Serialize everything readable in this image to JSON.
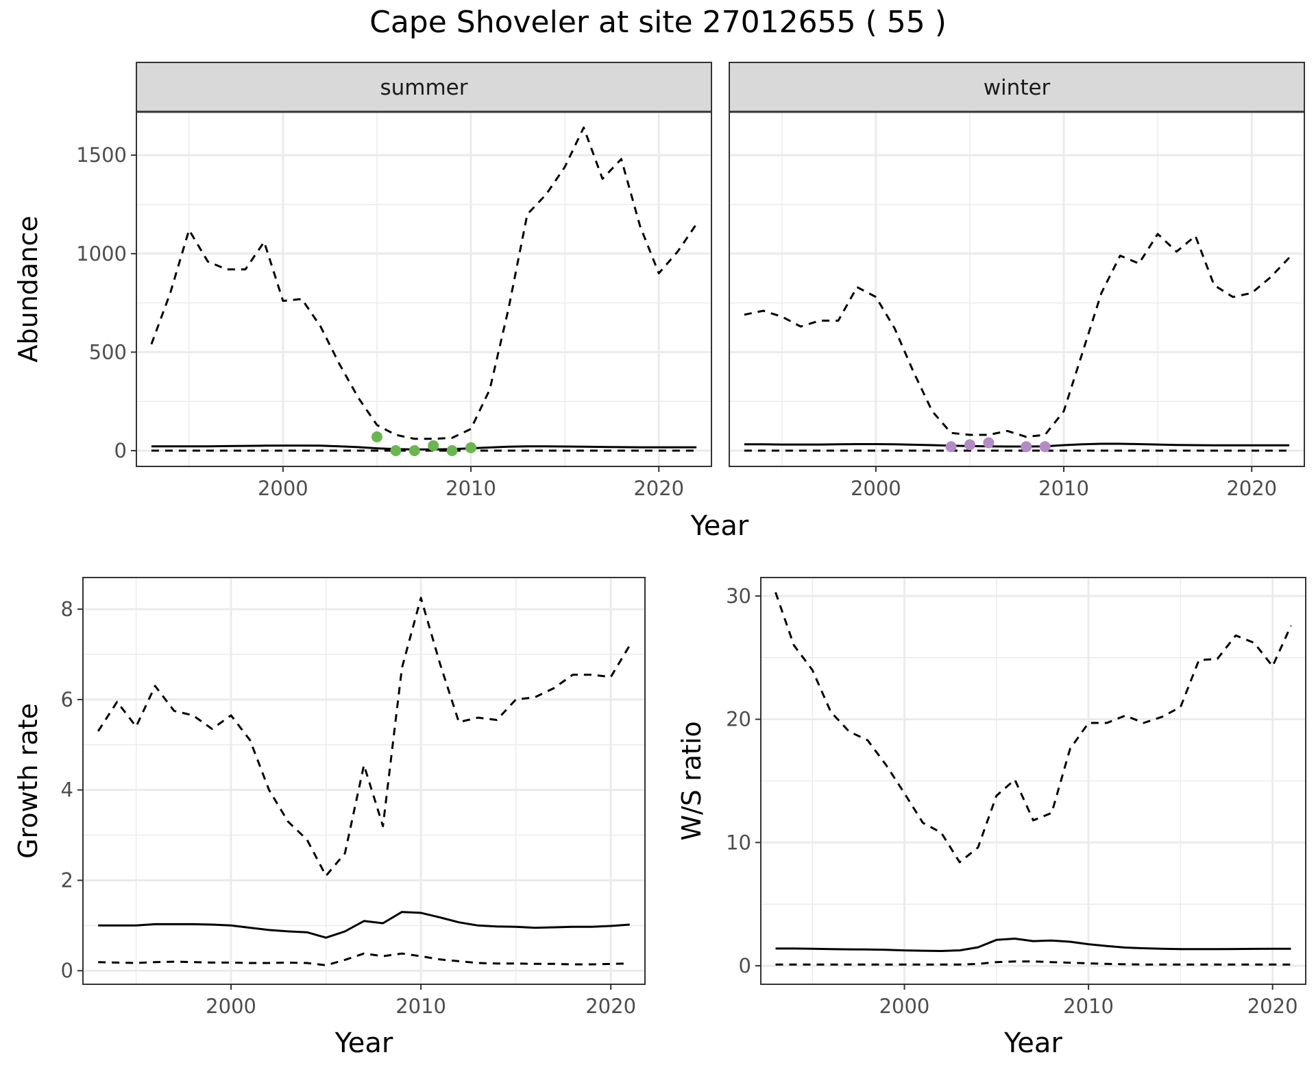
{
  "figure": {
    "title": "Cape Shoveler at site 27012655 ( 55 )"
  },
  "colors": {
    "summer_points": "#6ab651",
    "winter_points": "#b48ac7",
    "line": "#000000",
    "strip_bg": "#d9d9d9",
    "grid": "#ebebeb"
  },
  "chart_data": [
    {
      "type": "line",
      "title": "",
      "facets": [
        "summer",
        "winter"
      ],
      "xlabel": "Year",
      "ylabel": "Abundance",
      "xlim": [
        1992.2,
        2022.8
      ],
      "ylim": [
        -80,
        1720
      ],
      "xticks": [
        2000,
        2010,
        2020
      ],
      "yticks": [
        0,
        500,
        1000,
        1500
      ],
      "grid": true,
      "panels": [
        {
          "facet": "summer",
          "series": [
            {
              "style": "solid",
              "x": [
                1993,
                1994,
                1995,
                1996,
                1997,
                1998,
                1999,
                2000,
                2001,
                2002,
                2003,
                2004,
                2005,
                2006,
                2007,
                2008,
                2009,
                2010,
                2011,
                2012,
                2013,
                2014,
                2015,
                2016,
                2017,
                2018,
                2019,
                2020,
                2021,
                2022
              ],
              "y": [
                22,
                22,
                22,
                22,
                23,
                24,
                25,
                26,
                26,
                25,
                22,
                18,
                12,
                8,
                6,
                6,
                8,
                12,
                16,
                20,
                22,
                22,
                21,
                20,
                19,
                18,
                17,
                17,
                17,
                17
              ]
            },
            {
              "style": "dashed",
              "x": [
                1993,
                1994,
                1995,
                1996,
                1997,
                1998,
                1999,
                2000,
                2001,
                2002,
                2003,
                2004,
                2005,
                2006,
                2007,
                2008,
                2009,
                2010,
                2011,
                2012,
                2013,
                2014,
                2015,
                2016,
                2017,
                2018,
                2019,
                2020,
                2021,
                2022
              ],
              "y": [
                540,
                800,
                1120,
                960,
                920,
                920,
                1060,
                760,
                770,
                630,
                440,
                270,
                130,
                80,
                60,
                60,
                65,
                110,
                310,
                720,
                1200,
                1300,
                1440,
                1640,
                1380,
                1480,
                1140,
                900,
                1010,
                1150
              ]
            },
            {
              "style": "dashed",
              "x": [
                1993,
                2022
              ],
              "y": [
                0,
                0
              ]
            },
            {
              "style": "points",
              "x": [
                2005,
                2006,
                2007,
                2008,
                2009,
                2010
              ],
              "y": [
                70,
                0,
                0,
                25,
                0,
                15
              ]
            }
          ]
        },
        {
          "facet": "winter",
          "series": [
            {
              "style": "solid",
              "x": [
                1993,
                1994,
                1995,
                1996,
                1997,
                1998,
                1999,
                2000,
                2001,
                2002,
                2003,
                2004,
                2005,
                2006,
                2007,
                2008,
                2009,
                2010,
                2011,
                2012,
                2013,
                2014,
                2015,
                2016,
                2017,
                2018,
                2019,
                2020,
                2021,
                2022
              ],
              "y": [
                32,
                32,
                31,
                31,
                31,
                32,
                33,
                33,
                32,
                30,
                28,
                25,
                23,
                22,
                21,
                21,
                22,
                28,
                32,
                35,
                35,
                33,
                31,
                29,
                28,
                27,
                27,
                27,
                27,
                27
              ]
            },
            {
              "style": "dashed",
              "x": [
                1993,
                1994,
                1995,
                1996,
                1997,
                1998,
                1999,
                2000,
                2001,
                2002,
                2003,
                2004,
                2005,
                2006,
                2007,
                2008,
                2009,
                2010,
                2011,
                2012,
                2013,
                2014,
                2015,
                2016,
                2017,
                2018,
                2019,
                2020,
                2021,
                2022
              ],
              "y": [
                690,
                710,
                680,
                630,
                660,
                660,
                830,
                780,
                620,
                400,
                200,
                90,
                80,
                80,
                100,
                70,
                80,
                200,
                500,
                800,
                990,
                950,
                1100,
                1010,
                1090,
                840,
                780,
                800,
                880,
                980
              ]
            },
            {
              "style": "dashed",
              "x": [
                1993,
                2022
              ],
              "y": [
                0,
                0
              ]
            },
            {
              "style": "points",
              "x": [
                2004,
                2005,
                2006,
                2008,
                2009
              ],
              "y": [
                20,
                30,
                40,
                20,
                20
              ]
            }
          ]
        }
      ]
    },
    {
      "type": "line",
      "title": "",
      "xlabel": "Year",
      "ylabel": "Growth rate",
      "xlim": [
        1992.2,
        2021.8
      ],
      "ylim": [
        -0.3,
        8.7
      ],
      "xticks": [
        2000,
        2010,
        2020
      ],
      "yticks": [
        0,
        2,
        4,
        6,
        8
      ],
      "grid": true,
      "series": [
        {
          "style": "solid",
          "x": [
            1993,
            1994,
            1995,
            1996,
            1997,
            1998,
            1999,
            2000,
            2001,
            2002,
            2003,
            2004,
            2005,
            2006,
            2007,
            2008,
            2009,
            2010,
            2011,
            2012,
            2013,
            2014,
            2015,
            2016,
            2017,
            2018,
            2019,
            2020,
            2021
          ],
          "y": [
            1.0,
            1.0,
            1.0,
            1.03,
            1.03,
            1.03,
            1.02,
            1.0,
            0.95,
            0.9,
            0.87,
            0.85,
            0.73,
            0.87,
            1.1,
            1.05,
            1.3,
            1.28,
            1.18,
            1.07,
            1.0,
            0.98,
            0.97,
            0.95,
            0.96,
            0.97,
            0.97,
            0.99,
            1.02
          ]
        },
        {
          "style": "dashed",
          "x": [
            1993,
            1994,
            1995,
            1996,
            1997,
            1998,
            1999,
            2000,
            2001,
            2002,
            2003,
            2004,
            2005,
            2006,
            2007,
            2008,
            2009,
            2010,
            2011,
            2012,
            2013,
            2014,
            2015,
            2016,
            2017,
            2018,
            2019,
            2020,
            2021
          ],
          "y": [
            5.3,
            5.95,
            5.4,
            6.3,
            5.75,
            5.65,
            5.35,
            5.65,
            5.1,
            4.0,
            3.3,
            2.9,
            2.1,
            2.6,
            4.55,
            3.2,
            6.7,
            8.25,
            6.8,
            5.5,
            5.6,
            5.55,
            6.0,
            6.05,
            6.25,
            6.55,
            6.55,
            6.5,
            7.2
          ]
        },
        {
          "style": "dashed",
          "x": [
            1993,
            1994,
            1995,
            1996,
            1997,
            1998,
            1999,
            2000,
            2001,
            2002,
            2003,
            2004,
            2005,
            2006,
            2007,
            2008,
            2009,
            2010,
            2011,
            2012,
            2013,
            2014,
            2015,
            2016,
            2017,
            2018,
            2019,
            2020,
            2021
          ],
          "y": [
            0.19,
            0.18,
            0.17,
            0.19,
            0.2,
            0.19,
            0.18,
            0.18,
            0.17,
            0.17,
            0.18,
            0.17,
            0.12,
            0.24,
            0.38,
            0.32,
            0.38,
            0.32,
            0.25,
            0.21,
            0.17,
            0.16,
            0.16,
            0.15,
            0.15,
            0.14,
            0.14,
            0.15,
            0.16
          ]
        }
      ]
    },
    {
      "type": "line",
      "title": "",
      "xlabel": "Year",
      "ylabel": "W/S ratio",
      "xlim": [
        1992.2,
        2021.8
      ],
      "ylim": [
        -1.5,
        31.5
      ],
      "xticks": [
        2000,
        2010,
        2020
      ],
      "yticks": [
        0,
        10,
        20,
        30
      ],
      "grid": true,
      "series": [
        {
          "style": "solid",
          "x": [
            1993,
            1994,
            1995,
            1996,
            1997,
            1998,
            1999,
            2000,
            2001,
            2002,
            2003,
            2004,
            2005,
            2006,
            2007,
            2008,
            2009,
            2010,
            2011,
            2012,
            2013,
            2014,
            2015,
            2016,
            2017,
            2018,
            2019,
            2020,
            2021
          ],
          "y": [
            1.4,
            1.4,
            1.38,
            1.35,
            1.33,
            1.32,
            1.3,
            1.25,
            1.22,
            1.2,
            1.25,
            1.5,
            2.1,
            2.2,
            2.0,
            2.05,
            1.95,
            1.75,
            1.6,
            1.48,
            1.42,
            1.38,
            1.35,
            1.35,
            1.35,
            1.36,
            1.37,
            1.38,
            1.38
          ]
        },
        {
          "style": "dashed",
          "x": [
            1993,
            1994,
            1995,
            1996,
            1997,
            1998,
            1999,
            2000,
            2001,
            2002,
            2003,
            2004,
            2005,
            2006,
            2007,
            2008,
            2009,
            2010,
            2011,
            2012,
            2013,
            2014,
            2015,
            2016,
            2017,
            2018,
            2019,
            2020,
            2021
          ],
          "y": [
            30.3,
            26.0,
            24.0,
            20.6,
            19.0,
            18.3,
            16.3,
            14.0,
            11.6,
            10.8,
            8.4,
            9.6,
            13.8,
            15.1,
            11.8,
            12.4,
            17.6,
            19.7,
            19.7,
            20.3,
            19.7,
            20.2,
            21.0,
            24.8,
            24.9,
            26.8,
            26.2,
            24.3,
            27.6
          ]
        },
        {
          "style": "dashed",
          "x": [
            1993,
            1994,
            1995,
            1996,
            1997,
            1998,
            1999,
            2000,
            2001,
            2002,
            2003,
            2004,
            2005,
            2006,
            2007,
            2008,
            2009,
            2010,
            2011,
            2012,
            2013,
            2014,
            2015,
            2016,
            2017,
            2018,
            2019,
            2020,
            2021
          ],
          "y": [
            0.1,
            0.1,
            0.1,
            0.1,
            0.1,
            0.1,
            0.1,
            0.1,
            0.1,
            0.1,
            0.1,
            0.15,
            0.3,
            0.35,
            0.35,
            0.3,
            0.25,
            0.2,
            0.15,
            0.12,
            0.1,
            0.1,
            0.1,
            0.1,
            0.1,
            0.1,
            0.1,
            0.1,
            0.1
          ]
        }
      ]
    }
  ]
}
